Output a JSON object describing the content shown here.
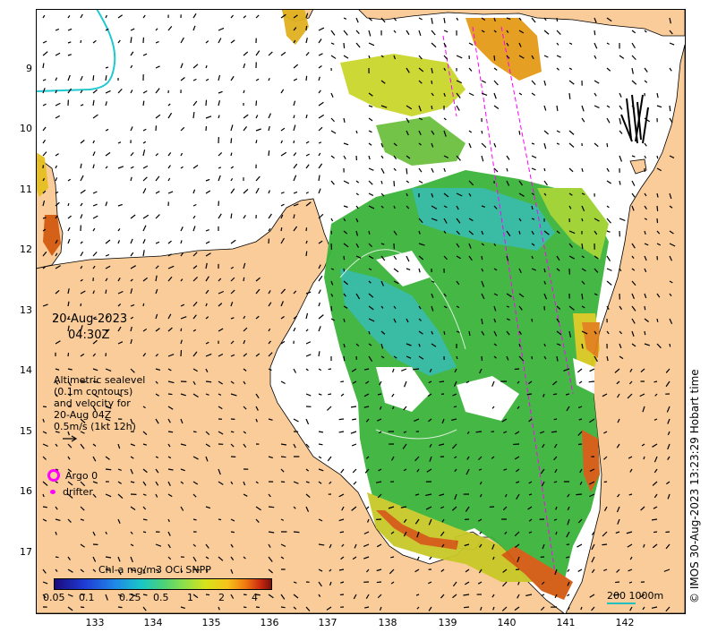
{
  "map": {
    "lat_ticks": [
      "9",
      "10",
      "11",
      "12",
      "13",
      "14",
      "15",
      "16",
      "17"
    ],
    "lon_ticks": [
      "133",
      "134",
      "135",
      "136",
      "137",
      "138",
      "139",
      "140",
      "141",
      "142"
    ],
    "date": "20-Aug-2023",
    "time": "04:30Z",
    "altimetry_lines": [
      "Altimetric sealevel",
      "(0.1m contours)",
      "and velocity for",
      "20-Aug 04Z",
      "0.5m/s (1kt 12h)"
    ],
    "argo_label": "Argo 0",
    "drifter_label": "drifter",
    "colorbar_title": "Chl-a mg/m3 OCi SNPP",
    "colorbar_ticks": [
      "0.05",
      "0.1",
      "0.25",
      "0.5",
      "1",
      "2",
      "4"
    ],
    "scale_label": "200  1000m",
    "credit": "© IMOS 30-Aug-2023 13:23:29 Hobart time",
    "colors": {
      "land": "#f9cc9a",
      "ocean": "#ffffff",
      "chl_green": "#3cb43c",
      "chl_high": "#d35a10",
      "argo": "#ff00ff",
      "contour": "#20c0c0"
    }
  }
}
